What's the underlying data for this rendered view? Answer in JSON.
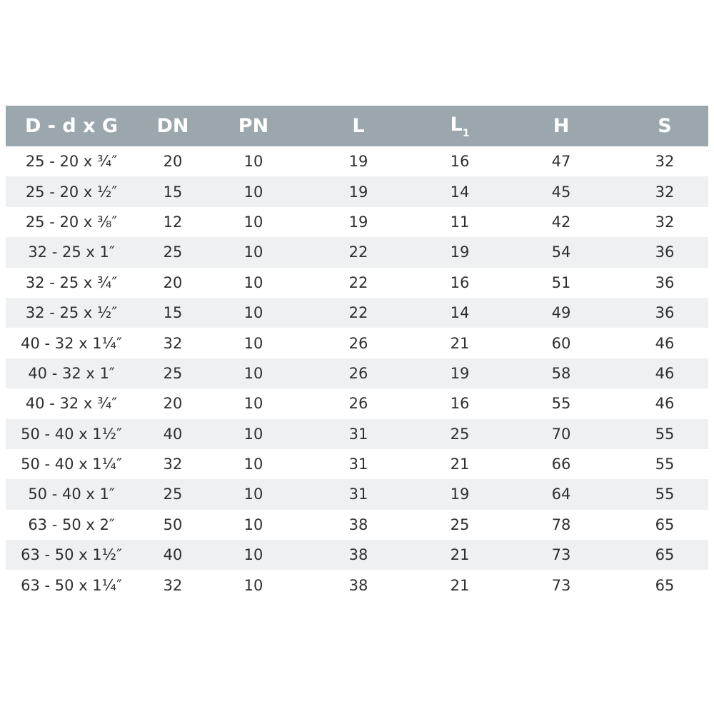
{
  "table": {
    "headers": [
      "D - d x G",
      "DN",
      "PN",
      "L",
      "L",
      "H",
      "S"
    ],
    "header_subscripts": [
      "",
      "",
      "",
      "",
      "1",
      "",
      ""
    ],
    "header_bg": "#9ba7ad",
    "stripe_bg": "#eef0f2",
    "rows": [
      [
        "25 - 20 x ¾″",
        "20",
        "10",
        "19",
        "16",
        "47",
        "32"
      ],
      [
        "25 - 20 x ½″",
        "15",
        "10",
        "19",
        "14",
        "45",
        "32"
      ],
      [
        "25 - 20 x ⅜″",
        "12",
        "10",
        "19",
        "11",
        "42",
        "32"
      ],
      [
        "32 - 25 x 1″",
        "25",
        "10",
        "22",
        "19",
        "54",
        "36"
      ],
      [
        "32 - 25 x ¾″",
        "20",
        "10",
        "22",
        "16",
        "51",
        "36"
      ],
      [
        "32 - 25 x ½″",
        "15",
        "10",
        "22",
        "14",
        "49",
        "36"
      ],
      [
        "40 - 32 x 1¼″",
        "32",
        "10",
        "26",
        "21",
        "60",
        "46"
      ],
      [
        "40 - 32 x 1″",
        "25",
        "10",
        "26",
        "19",
        "58",
        "46"
      ],
      [
        "40 - 32 x ¾″",
        "20",
        "10",
        "26",
        "16",
        "55",
        "46"
      ],
      [
        "50 - 40 x 1½″",
        "40",
        "10",
        "31",
        "25",
        "70",
        "55"
      ],
      [
        "50 - 40 x 1¼″",
        "32",
        "10",
        "31",
        "21",
        "66",
        "55"
      ],
      [
        "50 - 40 x 1″",
        "25",
        "10",
        "31",
        "19",
        "64",
        "55"
      ],
      [
        "63 - 50 x 2″",
        "50",
        "10",
        "38",
        "25",
        "78",
        "65"
      ],
      [
        "63 - 50 x 1½″",
        "40",
        "10",
        "38",
        "21",
        "73",
        "65"
      ],
      [
        "63 - 50 x 1¼″",
        "32",
        "10",
        "38",
        "21",
        "73",
        "65"
      ]
    ]
  }
}
